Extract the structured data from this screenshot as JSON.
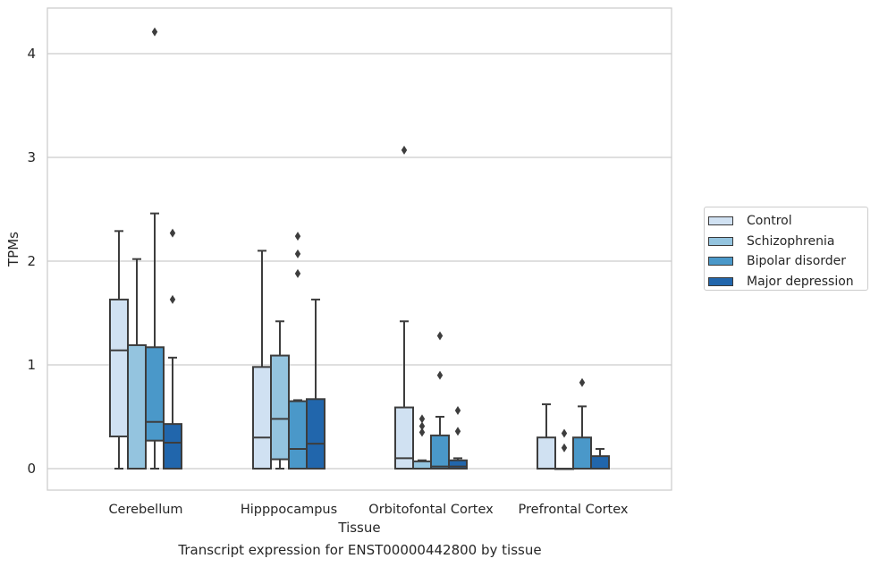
{
  "caption": "Transcript expression for ENST00000442800 by tissue",
  "chart_data": {
    "type": "boxplot",
    "title": "",
    "xlabel": "Tissue",
    "ylabel": "TPMs",
    "ylim": [
      -0.2,
      4.4
    ],
    "yticks": [
      0,
      1,
      2,
      3,
      4
    ],
    "grid": "horizontal",
    "legend_position": "right",
    "categories": [
      "Cerebellum",
      "Hipppocampus",
      "Orbitofontal Cortex",
      "Prefrontal Cortex"
    ],
    "series": [
      {
        "name": "Control",
        "color": "#d0e1f2",
        "boxes": [
          {
            "whislo": 0,
            "q1": 0.31,
            "med": 1.14,
            "q3": 1.63,
            "whishi": 2.29,
            "fliers": []
          },
          {
            "whislo": 0,
            "q1": 0,
            "med": 0.3,
            "q3": 0.98,
            "whishi": 2.1,
            "fliers": []
          },
          {
            "whislo": 0,
            "q1": 0,
            "med": 0.1,
            "q3": 0.59,
            "whishi": 1.42,
            "fliers": [
              3.07
            ]
          },
          {
            "whislo": 0,
            "q1": 0,
            "med": 0,
            "q3": 0.3,
            "whishi": 0.62,
            "fliers": []
          }
        ]
      },
      {
        "name": "Schizophrenia",
        "color": "#94c4df",
        "boxes": [
          {
            "whislo": 0,
            "q1": 0,
            "med": 0,
            "q3": 1.19,
            "whishi": 2.02,
            "fliers": []
          },
          {
            "whislo": 0,
            "q1": 0.09,
            "med": 0.48,
            "q3": 1.09,
            "whishi": 1.42,
            "fliers": []
          },
          {
            "whislo": 0,
            "q1": 0,
            "med": 0,
            "q3": 0.07,
            "whishi": 0.08,
            "fliers": [
              0.35,
              0.41,
              0.48
            ]
          },
          {
            "whislo": 0,
            "q1": 0,
            "med": 0,
            "q3": 0,
            "whishi": 0,
            "fliers": [
              0.2,
              0.34
            ]
          }
        ]
      },
      {
        "name": "Bipolar disorder",
        "color": "#4a98c9",
        "boxes": [
          {
            "whislo": 0,
            "q1": 0.27,
            "med": 0.45,
            "q3": 1.17,
            "whishi": 2.46,
            "fliers": [
              4.21
            ]
          },
          {
            "whislo": 0,
            "q1": 0,
            "med": 0.19,
            "q3": 0.65,
            "whishi": 0.66,
            "fliers": [
              1.88,
              2.07,
              2.24
            ]
          },
          {
            "whislo": 0,
            "q1": 0,
            "med": 0.02,
            "q3": 0.32,
            "whishi": 0.5,
            "fliers": [
              0.9,
              1.28
            ]
          },
          {
            "whislo": 0,
            "q1": 0,
            "med": 0,
            "q3": 0.3,
            "whishi": 0.6,
            "fliers": [
              0.83
            ]
          }
        ]
      },
      {
        "name": "Major depression",
        "color": "#2166ac",
        "boxes": [
          {
            "whislo": 0,
            "q1": 0,
            "med": 0.25,
            "q3": 0.43,
            "whishi": 1.07,
            "fliers": [
              1.63,
              2.27
            ]
          },
          {
            "whislo": 0,
            "q1": 0,
            "med": 0.24,
            "q3": 0.67,
            "whishi": 1.63,
            "fliers": []
          },
          {
            "whislo": 0,
            "q1": 0,
            "med": 0.02,
            "q3": 0.08,
            "whishi": 0.1,
            "fliers": [
              0.36,
              0.56
            ]
          },
          {
            "whislo": 0,
            "q1": 0,
            "med": 0,
            "q3": 0.12,
            "whishi": 0.19,
            "fliers": []
          }
        ]
      }
    ]
  }
}
